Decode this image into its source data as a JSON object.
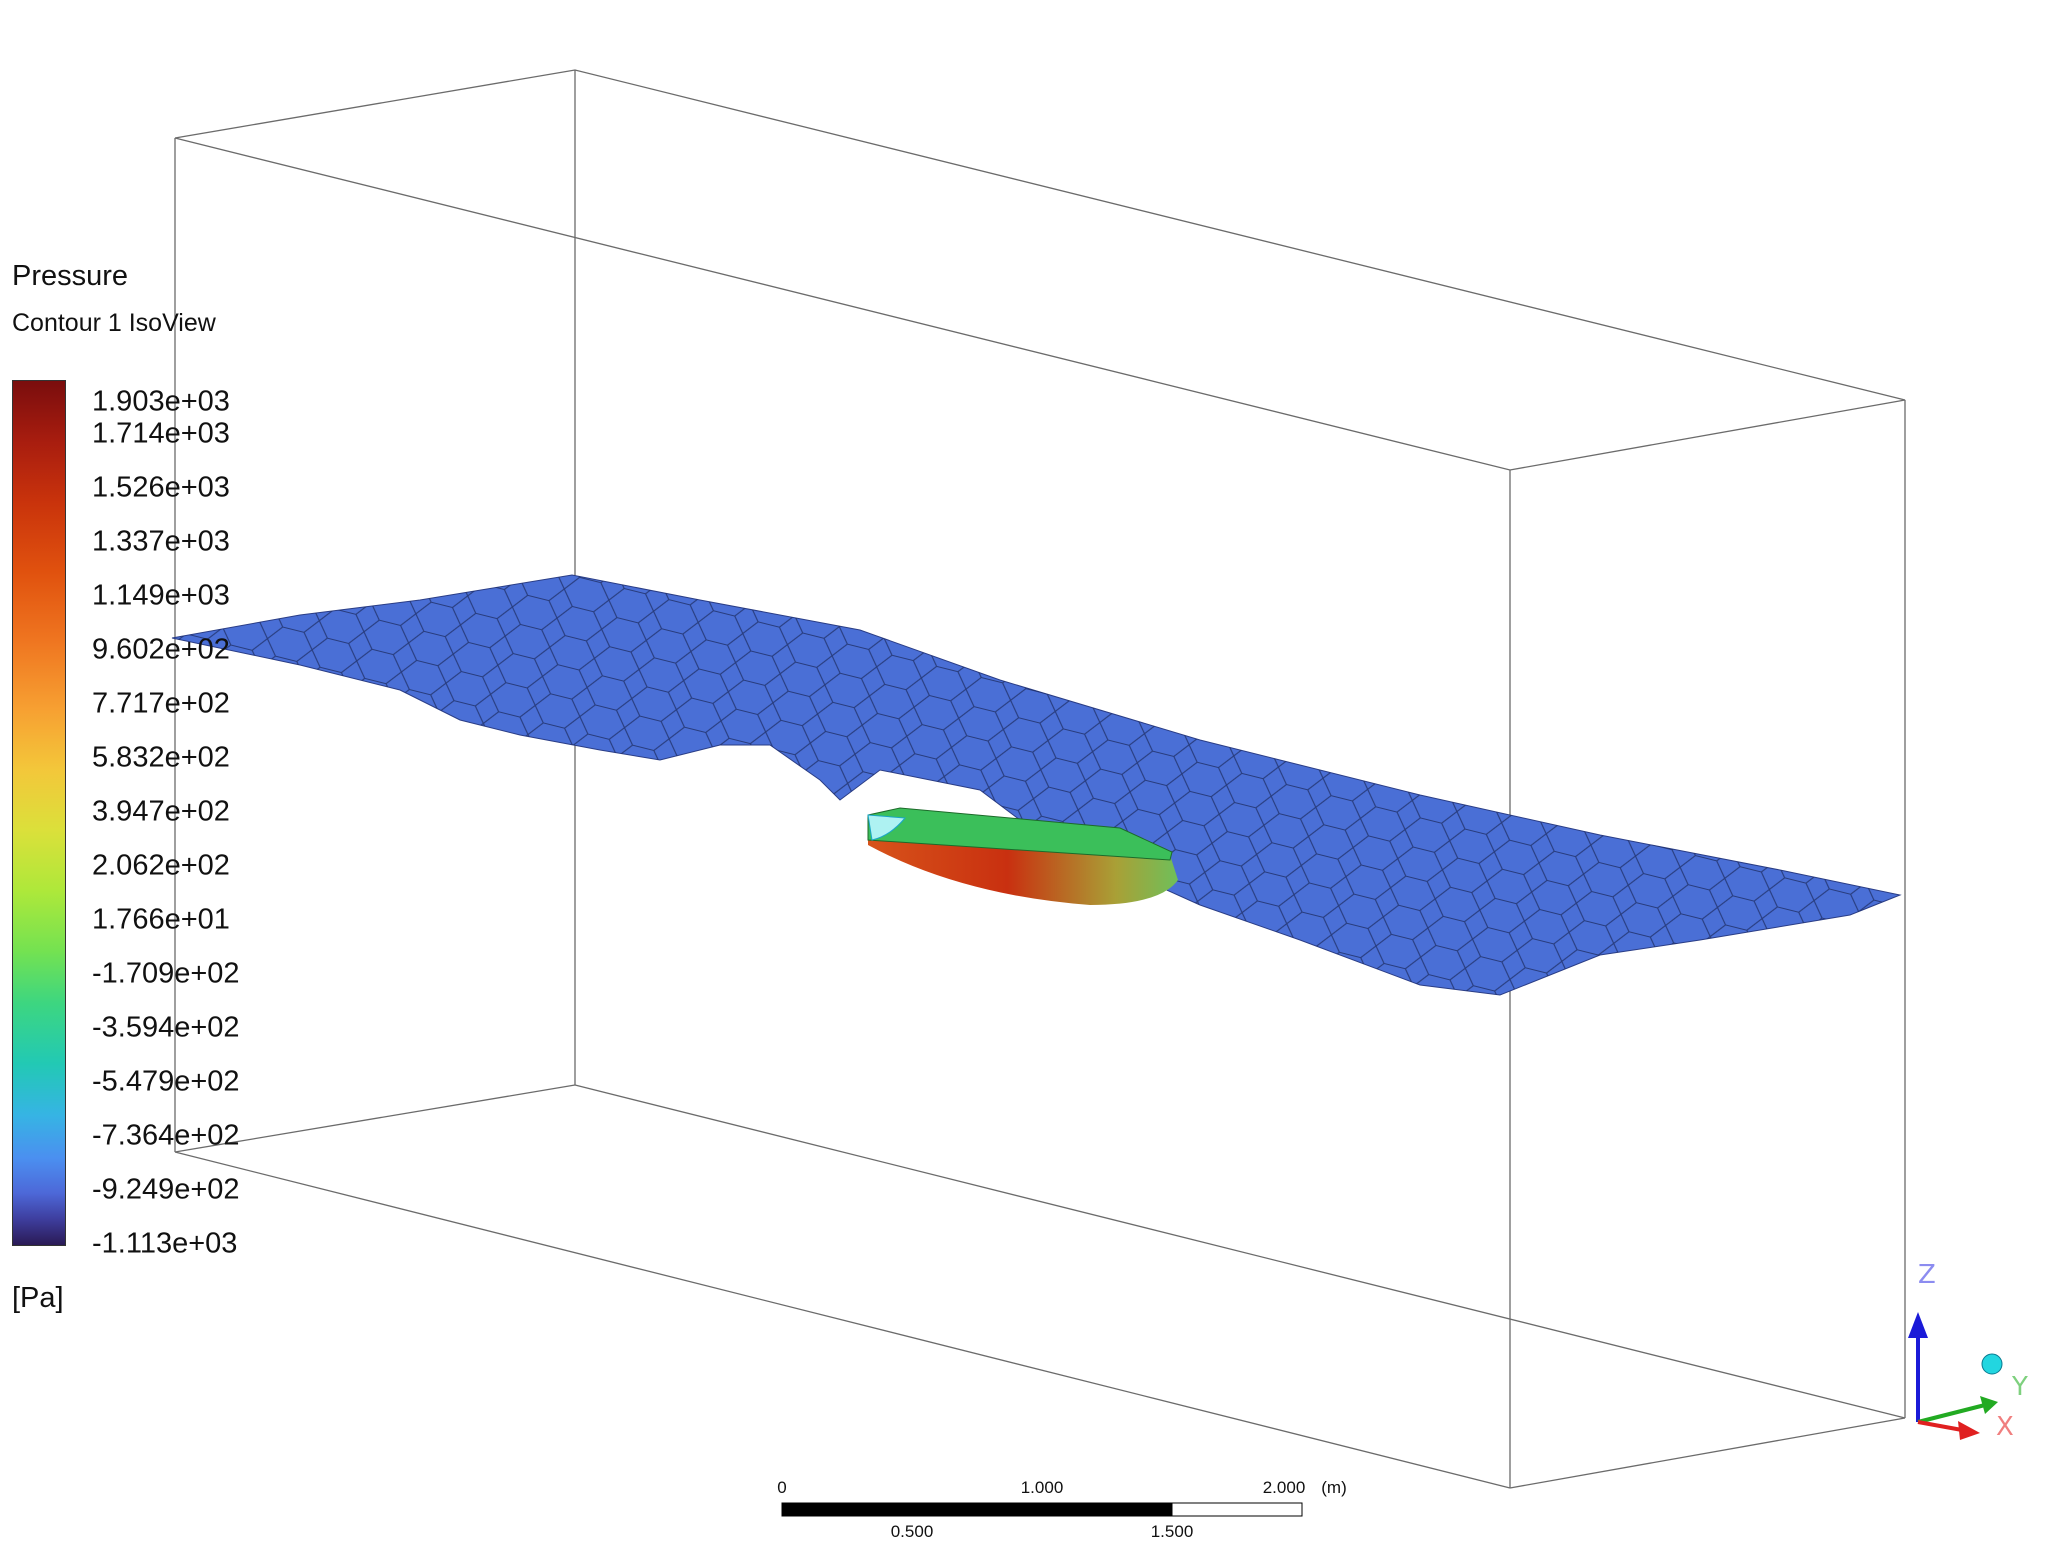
{
  "legend": {
    "title": "Pressure",
    "subtitle": "Contour 1 IsoView",
    "unit": "[Pa]",
    "ticks": [
      "1.903e+03",
      "1.714e+03",
      "1.526e+03",
      "1.337e+03",
      "1.149e+03",
      "9.602e+02",
      "7.717e+02",
      "5.832e+02",
      "3.947e+02",
      "2.062e+02",
      "1.766e+01",
      "-1.709e+02",
      "-3.594e+02",
      "-5.479e+02",
      "-7.364e+02",
      "-9.249e+02",
      "-1.113e+03"
    ]
  },
  "scale_bar": {
    "top_labels": [
      "0",
      "1.000",
      "2.000"
    ],
    "unit": "(m)",
    "bottom_labels": [
      "0.500",
      "1.500"
    ]
  },
  "triad": {
    "x": "X",
    "y": "Y",
    "z": "Z"
  },
  "colors": {
    "free_surface": "#4a6fd6",
    "hull_high": "#c93a10",
    "hull_deck": "#3bbf5a",
    "axis_x": "#e02020",
    "axis_y": "#22aa22",
    "axis_z": "#1a1ad8"
  }
}
